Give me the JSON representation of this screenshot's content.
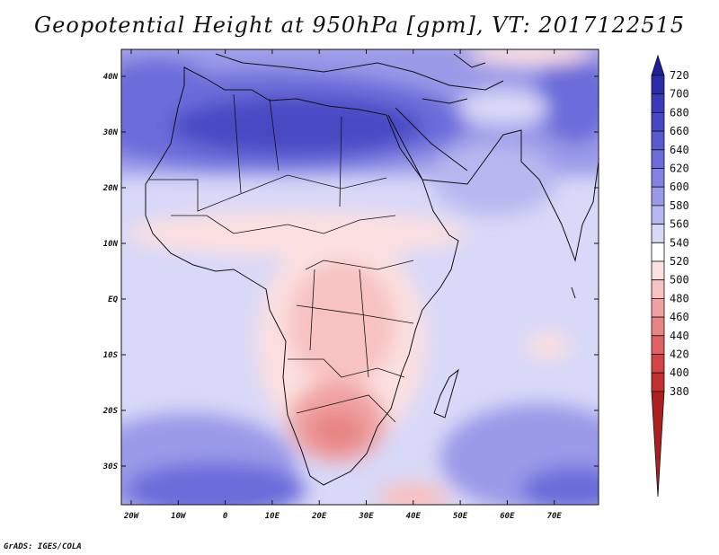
{
  "title": "Geopotential Height at 950hPa [gpm], VT: 2017122515",
  "credit": "GrADS: IGES/COLA",
  "axes": {
    "lat_labels": [
      "40N",
      "30N",
      "20N",
      "10N",
      "EQ",
      "10S",
      "20S",
      "30S"
    ],
    "lon_labels": [
      "20W",
      "10W",
      "0",
      "10E",
      "20E",
      "30E",
      "40E",
      "50E",
      "60E",
      "70E"
    ]
  },
  "colorbar": {
    "labels": [
      "720",
      "700",
      "680",
      "660",
      "640",
      "620",
      "600",
      "580",
      "560",
      "540",
      "520",
      "500",
      "480",
      "460",
      "440",
      "420",
      "400",
      "380"
    ],
    "colors": [
      "#1e1e9a",
      "#2c2cab",
      "#3a3ab8",
      "#4848c4",
      "#5a5ad0",
      "#6c6cda",
      "#8282e2",
      "#9a9ae8",
      "#b8b8f0",
      "#d8d8f8",
      "#ffffff",
      "#fce0e0",
      "#f7c2c2",
      "#f0a2a2",
      "#e88484",
      "#e06262",
      "#d44444",
      "#c23030",
      "#ac2020"
    ]
  }
}
